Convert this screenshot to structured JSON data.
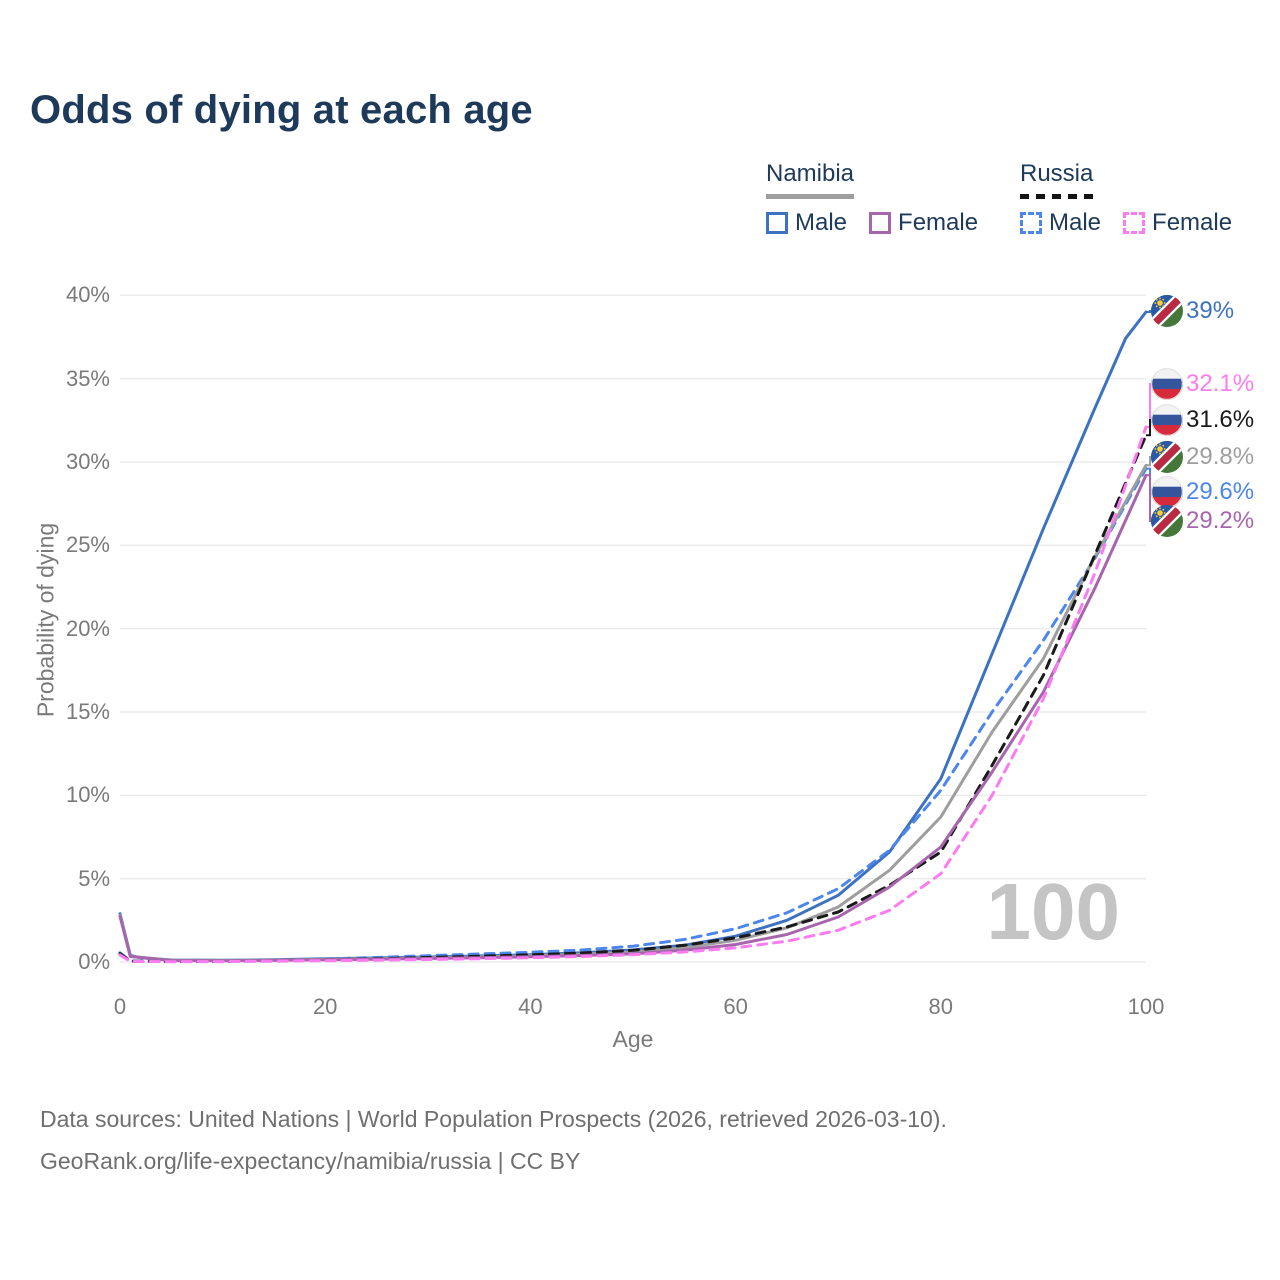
{
  "title": "Odds of dying at each age",
  "legend": {
    "groups": [
      {
        "id": "namibia",
        "title": "Namibia",
        "underline_style": "solid",
        "items": [
          {
            "id": "namibia-male",
            "label": "Male",
            "color": "#3d72c0",
            "dashed": false
          },
          {
            "id": "namibia-female",
            "label": "Female",
            "color": "#a765ad",
            "dashed": false
          }
        ]
      },
      {
        "id": "russia",
        "title": "Russia",
        "underline_style": "dashed",
        "items": [
          {
            "id": "russia-male",
            "label": "Male",
            "color": "#4c86ec",
            "dashed": true
          },
          {
            "id": "russia-female",
            "label": "Female",
            "color": "#fb7cf0",
            "dashed": true
          }
        ]
      }
    ]
  },
  "chart_data": {
    "type": "line",
    "title": "Odds of dying at each age",
    "xlabel": "Age",
    "ylabel": "Probability of dying",
    "xlim": [
      0,
      100
    ],
    "ylim": [
      0,
      40
    ],
    "grid": "horizontal-only",
    "xticks": [
      0,
      20,
      40,
      60,
      80,
      100
    ],
    "yticks": [
      {
        "value": 0,
        "label": "0%"
      },
      {
        "value": 5,
        "label": "5%"
      },
      {
        "value": 10,
        "label": "10%"
      },
      {
        "value": 15,
        "label": "15%"
      },
      {
        "value": 20,
        "label": "20%"
      },
      {
        "value": 25,
        "label": "25%"
      },
      {
        "value": 30,
        "label": "30%"
      },
      {
        "value": 35,
        "label": "35%"
      },
      {
        "value": 40,
        "label": "40%"
      }
    ],
    "hovered_age_indicator": "100",
    "series": [
      {
        "id": "namibia-male",
        "name": "Namibia Male",
        "country": "namibia",
        "color": "#3d72c0",
        "dashed": false,
        "points": [
          [
            0,
            2.9
          ],
          [
            1,
            0.4
          ],
          [
            2,
            0.25
          ],
          [
            5,
            0.12
          ],
          [
            10,
            0.1
          ],
          [
            15,
            0.13
          ],
          [
            20,
            0.19
          ],
          [
            25,
            0.24
          ],
          [
            30,
            0.3
          ],
          [
            35,
            0.36
          ],
          [
            40,
            0.44
          ],
          [
            45,
            0.55
          ],
          [
            50,
            0.72
          ],
          [
            55,
            1.0
          ],
          [
            60,
            1.55
          ],
          [
            65,
            2.5
          ],
          [
            70,
            4.0
          ],
          [
            75,
            6.6
          ],
          [
            80,
            11.0
          ],
          [
            85,
            18.5
          ],
          [
            90,
            26.0
          ],
          [
            95,
            33.2
          ],
          [
            98,
            37.4
          ],
          [
            100,
            39.0
          ]
        ]
      },
      {
        "id": "russia-male",
        "name": "Russia Male",
        "country": "russia",
        "color": "#4c86ec",
        "dashed": true,
        "points": [
          [
            0,
            0.55
          ],
          [
            1,
            0.06
          ],
          [
            5,
            0.03
          ],
          [
            10,
            0.04
          ],
          [
            15,
            0.09
          ],
          [
            20,
            0.18
          ],
          [
            25,
            0.27
          ],
          [
            30,
            0.38
          ],
          [
            35,
            0.48
          ],
          [
            40,
            0.58
          ],
          [
            45,
            0.72
          ],
          [
            50,
            0.95
          ],
          [
            55,
            1.35
          ],
          [
            60,
            2.0
          ],
          [
            65,
            2.95
          ],
          [
            70,
            4.4
          ],
          [
            75,
            6.7
          ],
          [
            80,
            10.3
          ],
          [
            85,
            15.0
          ],
          [
            90,
            19.3
          ],
          [
            95,
            24.2
          ],
          [
            100,
            29.6
          ]
        ]
      },
      {
        "id": "namibia-all",
        "name": "Namibia",
        "country": "namibia",
        "color": "#9e9e9e",
        "dashed": false,
        "points": [
          [
            0,
            2.8
          ],
          [
            1,
            0.35
          ],
          [
            5,
            0.1
          ],
          [
            10,
            0.09
          ],
          [
            15,
            0.11
          ],
          [
            20,
            0.16
          ],
          [
            25,
            0.2
          ],
          [
            30,
            0.25
          ],
          [
            35,
            0.3
          ],
          [
            40,
            0.37
          ],
          [
            45,
            0.46
          ],
          [
            50,
            0.6
          ],
          [
            55,
            0.85
          ],
          [
            60,
            1.3
          ],
          [
            65,
            2.05
          ],
          [
            70,
            3.3
          ],
          [
            75,
            5.5
          ],
          [
            80,
            8.7
          ],
          [
            85,
            13.8
          ],
          [
            90,
            18.2
          ],
          [
            95,
            24.3
          ],
          [
            100,
            29.8
          ]
        ]
      },
      {
        "id": "russia-all",
        "name": "Russia",
        "country": "russia",
        "color": "#1a1a1a",
        "dashed": true,
        "points": [
          [
            0,
            0.5
          ],
          [
            1,
            0.05
          ],
          [
            5,
            0.03
          ],
          [
            10,
            0.035
          ],
          [
            15,
            0.07
          ],
          [
            20,
            0.13
          ],
          [
            25,
            0.19
          ],
          [
            30,
            0.27
          ],
          [
            35,
            0.35
          ],
          [
            40,
            0.43
          ],
          [
            45,
            0.54
          ],
          [
            50,
            0.7
          ],
          [
            55,
            1.0
          ],
          [
            60,
            1.45
          ],
          [
            65,
            2.1
          ],
          [
            70,
            3.0
          ],
          [
            75,
            4.6
          ],
          [
            80,
            6.6
          ],
          [
            85,
            11.8
          ],
          [
            90,
            17.2
          ],
          [
            95,
            24.4
          ],
          [
            100,
            31.6
          ]
        ]
      },
      {
        "id": "namibia-female",
        "name": "Namibia Female",
        "country": "namibia",
        "color": "#a765ad",
        "dashed": false,
        "points": [
          [
            0,
            2.75
          ],
          [
            1,
            0.33
          ],
          [
            5,
            0.09
          ],
          [
            10,
            0.08
          ],
          [
            15,
            0.1
          ],
          [
            20,
            0.14
          ],
          [
            25,
            0.17
          ],
          [
            30,
            0.21
          ],
          [
            35,
            0.26
          ],
          [
            40,
            0.31
          ],
          [
            45,
            0.39
          ],
          [
            50,
            0.5
          ],
          [
            55,
            0.7
          ],
          [
            60,
            1.05
          ],
          [
            65,
            1.65
          ],
          [
            70,
            2.7
          ],
          [
            75,
            4.5
          ],
          [
            80,
            6.9
          ],
          [
            85,
            11.4
          ],
          [
            90,
            16.2
          ],
          [
            95,
            22.4
          ],
          [
            100,
            29.2
          ]
        ]
      },
      {
        "id": "russia-female",
        "name": "Russia Female",
        "country": "russia",
        "color": "#fb7cf0",
        "dashed": true,
        "points": [
          [
            0,
            0.42
          ],
          [
            1,
            0.04
          ],
          [
            5,
            0.02
          ],
          [
            10,
            0.025
          ],
          [
            15,
            0.05
          ],
          [
            20,
            0.08
          ],
          [
            25,
            0.11
          ],
          [
            30,
            0.15
          ],
          [
            35,
            0.2
          ],
          [
            40,
            0.26
          ],
          [
            45,
            0.33
          ],
          [
            50,
            0.44
          ],
          [
            55,
            0.6
          ],
          [
            60,
            0.85
          ],
          [
            65,
            1.25
          ],
          [
            70,
            1.9
          ],
          [
            75,
            3.1
          ],
          [
            80,
            5.3
          ],
          [
            85,
            10.0
          ],
          [
            90,
            15.8
          ],
          [
            95,
            23.3
          ],
          [
            100,
            32.1
          ]
        ]
      }
    ],
    "end_labels": [
      {
        "series": "namibia-male",
        "text": "39%",
        "value": 39.0,
        "color": "#3d72c0",
        "flag": "namibia"
      },
      {
        "series": "russia-female",
        "text": "32.1%",
        "value": 32.1,
        "color": "#fb7cf0",
        "flag": "russia"
      },
      {
        "series": "russia-all",
        "text": "31.6%",
        "value": 31.6,
        "color": "#1a1a1a",
        "flag": "russia"
      },
      {
        "series": "namibia-all",
        "text": "29.8%",
        "value": 29.8,
        "color": "#9e9e9e",
        "flag": "namibia"
      },
      {
        "series": "russia-male",
        "text": "29.6%",
        "value": 29.6,
        "color": "#4c86ec",
        "flag": "russia"
      },
      {
        "series": "namibia-female",
        "text": "29.2%",
        "value": 29.2,
        "color": "#a765ad",
        "flag": "namibia"
      }
    ],
    "legend_position": "top-right"
  },
  "footer": {
    "line1": "Data sources: United Nations | World Population Prospects (2026, retrieved 2026-03-10).",
    "line2": "GeoRank.org/life-expectancy/namibia/russia | CC BY"
  },
  "colors": {
    "title_text": "#1e3a5a",
    "axis_text": "#7a7a7a",
    "gridline": "#ebebeb",
    "watermark": "#c4c4c4",
    "footer_text": "#6f6f6f",
    "namibia_flag": {
      "blue": "#2a5aa6",
      "green": "#45763a",
      "red": "#bb2a43",
      "white": "#ffffff",
      "sun": "#ffce34"
    },
    "russia_flag": {
      "white": "#f2f2f2",
      "blue": "#34549c",
      "red": "#d52b3a"
    }
  }
}
